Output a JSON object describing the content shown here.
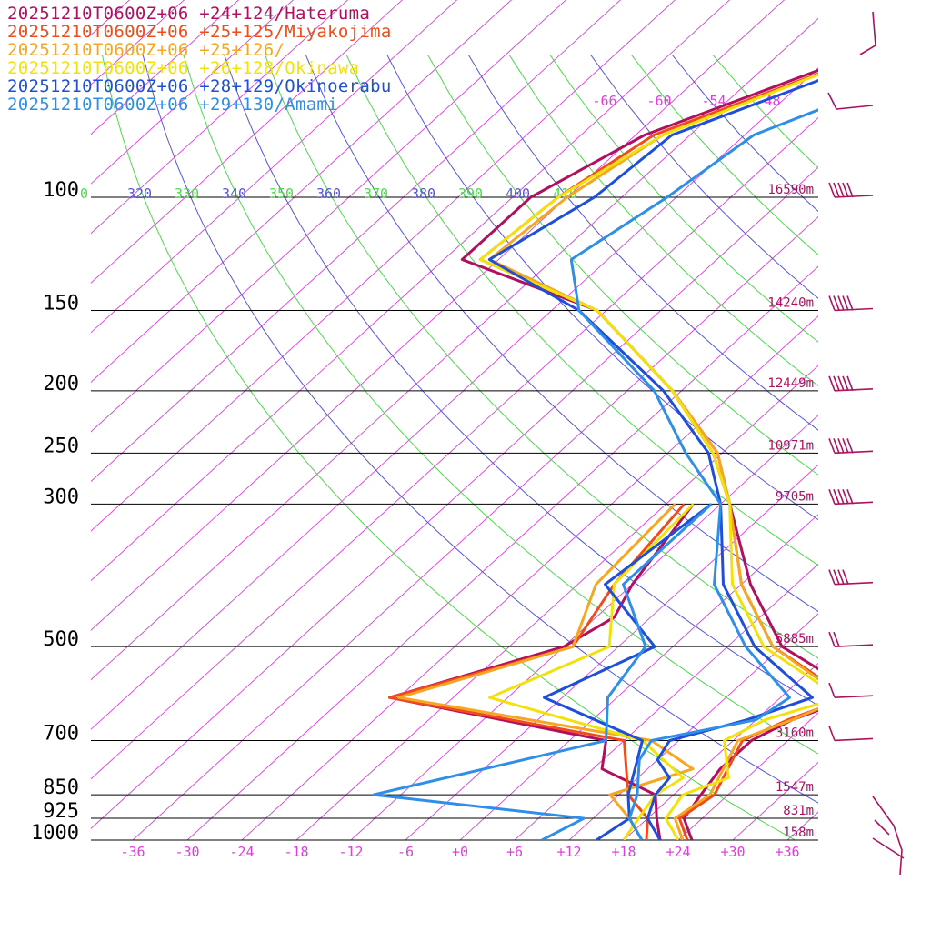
{
  "legend": [
    {
      "label": "20251210T0600Z+06 +24+124/Hateruma",
      "color": "#b0105e"
    },
    {
      "label": "20251210T0600Z+06 +25+125/Miyakojima",
      "color": "#f24a18"
    },
    {
      "label": "20251210T0600Z+06 +25+126/",
      "color": "#f5a623"
    },
    {
      "label": "20251210T0600Z+06 +26+128/Okinawa",
      "color": "#f2e20c"
    },
    {
      "label": "20251210T0600Z+06 +28+129/Okinoerabu",
      "color": "#1f4fd8"
    },
    {
      "label": "20251210T0600Z+06 +29+130/Amami",
      "color": "#2f8fe8"
    }
  ],
  "chart_data": {
    "type": "line",
    "title": "",
    "xlabel": "",
    "ylabel": "",
    "pressure_levels": [
      100,
      150,
      200,
      250,
      300,
      500,
      700,
      850,
      925,
      1000
    ],
    "pressure_labels": [
      "100",
      "150",
      "200",
      "250",
      "300",
      "500",
      "700",
      "850",
      "925",
      "1000"
    ],
    "height_labels": [
      "16590m",
      "14240m",
      "12449m",
      "10971m",
      "9705m",
      "5885m",
      "3160m",
      "1547m",
      "831m",
      "158m"
    ],
    "temperature_ticks": [
      "-36",
      "-30",
      "-24",
      "-18",
      "-12",
      "-6",
      "+0",
      "+6",
      "+12",
      "+18",
      "+24",
      "+30",
      "+36"
    ],
    "isotherm_labels": [
      "-66",
      "-60",
      "-54",
      "-48"
    ],
    "theta_labels": [
      "0",
      "320",
      "330",
      "340",
      "350",
      "360",
      "370",
      "380",
      "390",
      "400",
      "410"
    ],
    "theta_colors": [
      "#4bd94b",
      "#5555dd",
      "#4bd94b",
      "#5555dd",
      "#4bd94b",
      "#5555dd",
      "#4bd94b",
      "#5555dd",
      "#4bd94b",
      "#5555dd",
      "#4bd94b"
    ],
    "series": [
      {
        "name": "20251210T0600Z+06 +24+124/Hateruma",
        "color": "#b0105e",
        "temperature": [
          [
            1000,
            25.5
          ],
          [
            925,
            22
          ],
          [
            850,
            21
          ],
          [
            775,
            20
          ],
          [
            700,
            20
          ],
          [
            650,
            22
          ],
          [
            600,
            26
          ],
          [
            550,
            20
          ],
          [
            500,
            12
          ],
          [
            400,
            1
          ],
          [
            300,
            -11
          ],
          [
            250,
            -19
          ],
          [
            200,
            -31
          ],
          [
            150,
            -49
          ],
          [
            125,
            -70
          ],
          [
            100,
            -70
          ],
          [
            80,
            -65
          ],
          [
            60,
            -51
          ],
          [
            50,
            -44
          ],
          [
            45,
            -38
          ]
        ],
        "dewpoint": [
          [
            1000,
            22
          ],
          [
            925,
            19
          ],
          [
            850,
            16
          ],
          [
            775,
            7
          ],
          [
            700,
            4
          ],
          [
            600,
            -25
          ],
          [
            500,
            -12
          ],
          [
            450,
            -10
          ],
          [
            400,
            -12
          ],
          [
            300,
            -15
          ]
        ]
      },
      {
        "name": "20251210T0600Z+06 +25+125/Miyakojima",
        "color": "#f24a18",
        "temperature": [
          [
            1000,
            25
          ],
          [
            925,
            21.5
          ],
          [
            850,
            22.5
          ],
          [
            700,
            19
          ],
          [
            650,
            21.5
          ],
          [
            600,
            25.5
          ],
          [
            500,
            11
          ],
          [
            400,
            0
          ],
          [
            300,
            -11
          ],
          [
            250,
            -18.5
          ],
          [
            200,
            -31
          ],
          [
            150,
            -49
          ],
          [
            125,
            -68
          ],
          [
            100,
            -67
          ],
          [
            80,
            -64
          ],
          [
            60,
            -50
          ],
          [
            50,
            -43
          ],
          [
            45,
            -37
          ]
        ],
        "dewpoint": [
          [
            1000,
            20.5
          ],
          [
            925,
            18
          ],
          [
            850,
            13
          ],
          [
            700,
            6
          ],
          [
            600,
            -25
          ],
          [
            500,
            -11
          ],
          [
            400,
            -14
          ],
          [
            300,
            -16
          ]
        ]
      },
      {
        "name": "20251210T0600Z+06 +25+126/",
        "color": "#f5a623",
        "temperature": [
          [
            1000,
            24.5
          ],
          [
            925,
            21
          ],
          [
            850,
            22
          ],
          [
            700,
            18.5
          ],
          [
            650,
            22
          ],
          [
            600,
            25
          ],
          [
            500,
            11
          ],
          [
            400,
            0
          ],
          [
            300,
            -11
          ],
          [
            250,
            -18.5
          ],
          [
            200,
            -31
          ],
          [
            150,
            -49
          ],
          [
            125,
            -67
          ],
          [
            100,
            -66
          ],
          [
            80,
            -63
          ],
          [
            60,
            -50
          ],
          [
            50,
            -43
          ],
          [
            45,
            -37
          ]
        ],
        "dewpoint": [
          [
            1000,
            20
          ],
          [
            925,
            16
          ],
          [
            850,
            11
          ],
          [
            775,
            17
          ],
          [
            700,
            9
          ],
          [
            600,
            -24
          ],
          [
            500,
            -11
          ],
          [
            400,
            -16
          ],
          [
            300,
            -17
          ]
        ]
      },
      {
        "name": "20251210T0600Z+06 +26+128/Okinawa",
        "color": "#f2e20c",
        "temperature": [
          [
            1000,
            24
          ],
          [
            925,
            20
          ],
          [
            850,
            19
          ],
          [
            800,
            22
          ],
          [
            700,
            17
          ],
          [
            650,
            19
          ],
          [
            600,
            24.5
          ],
          [
            500,
            10
          ],
          [
            400,
            -1
          ],
          [
            300,
            -11
          ],
          [
            250,
            -19
          ],
          [
            200,
            -31
          ],
          [
            150,
            -49
          ],
          [
            125,
            -68
          ],
          [
            100,
            -67
          ],
          [
            80,
            -63
          ],
          [
            60,
            -50
          ],
          [
            50,
            -43
          ],
          [
            45,
            -37
          ]
        ],
        "dewpoint": [
          [
            1000,
            18
          ],
          [
            925,
            17
          ],
          [
            850,
            16
          ],
          [
            800,
            17
          ],
          [
            700,
            8
          ],
          [
            600,
            -14
          ],
          [
            500,
            -7
          ],
          [
            400,
            -14
          ],
          [
            300,
            -15
          ]
        ]
      },
      {
        "name": "20251210T0600Z+06 +28+129/Okinoerabu",
        "color": "#1f4fd8",
        "temperature": [
          [
            1000,
            22
          ],
          [
            925,
            18
          ],
          [
            850,
            16
          ],
          [
            800,
            15.5
          ],
          [
            750,
            12
          ],
          [
            700,
            11
          ],
          [
            650,
            17
          ],
          [
            600,
            21.5
          ],
          [
            500,
            9
          ],
          [
            400,
            -2
          ],
          [
            300,
            -12
          ],
          [
            250,
            -19.5
          ],
          [
            200,
            -32
          ],
          [
            150,
            -51
          ],
          [
            125,
            -67
          ],
          [
            100,
            -63
          ],
          [
            80,
            -62
          ],
          [
            60,
            -48
          ],
          [
            50,
            -41
          ],
          [
            45,
            -35
          ]
        ],
        "dewpoint": [
          [
            1000,
            15
          ],
          [
            925,
            16
          ],
          [
            850,
            13
          ],
          [
            700,
            8
          ],
          [
            600,
            -8
          ],
          [
            500,
            -2
          ],
          [
            400,
            -15
          ],
          [
            300,
            -13
          ]
        ]
      },
      {
        "name": "20251210T0600Z+06 +29+130/Amami",
        "color": "#2f8fe8",
        "temperature": [
          [
            1000,
            20
          ],
          [
            925,
            16
          ],
          [
            850,
            14
          ],
          [
            750,
            10
          ],
          [
            700,
            9
          ],
          [
            650,
            18
          ],
          [
            600,
            19
          ],
          [
            500,
            8
          ],
          [
            400,
            -3
          ],
          [
            300,
            -12
          ],
          [
            250,
            -22
          ],
          [
            200,
            -33
          ],
          [
            150,
            -51
          ],
          [
            125,
            -58
          ],
          [
            100,
            -55
          ],
          [
            80,
            -53
          ],
          [
            70,
            -47
          ],
          [
            60,
            -46
          ],
          [
            50,
            -38
          ],
          [
            45,
            -34
          ]
        ],
        "dewpoint": [
          [
            1000,
            9
          ],
          [
            925,
            11
          ],
          [
            850,
            -15
          ],
          [
            700,
            4
          ],
          [
            600,
            -1
          ],
          [
            500,
            -3
          ],
          [
            400,
            -13
          ],
          [
            300,
            -13
          ]
        ]
      }
    ],
    "wind_barb_color": "#b0105e",
    "grid": true,
    "legend_position": "top-left"
  }
}
